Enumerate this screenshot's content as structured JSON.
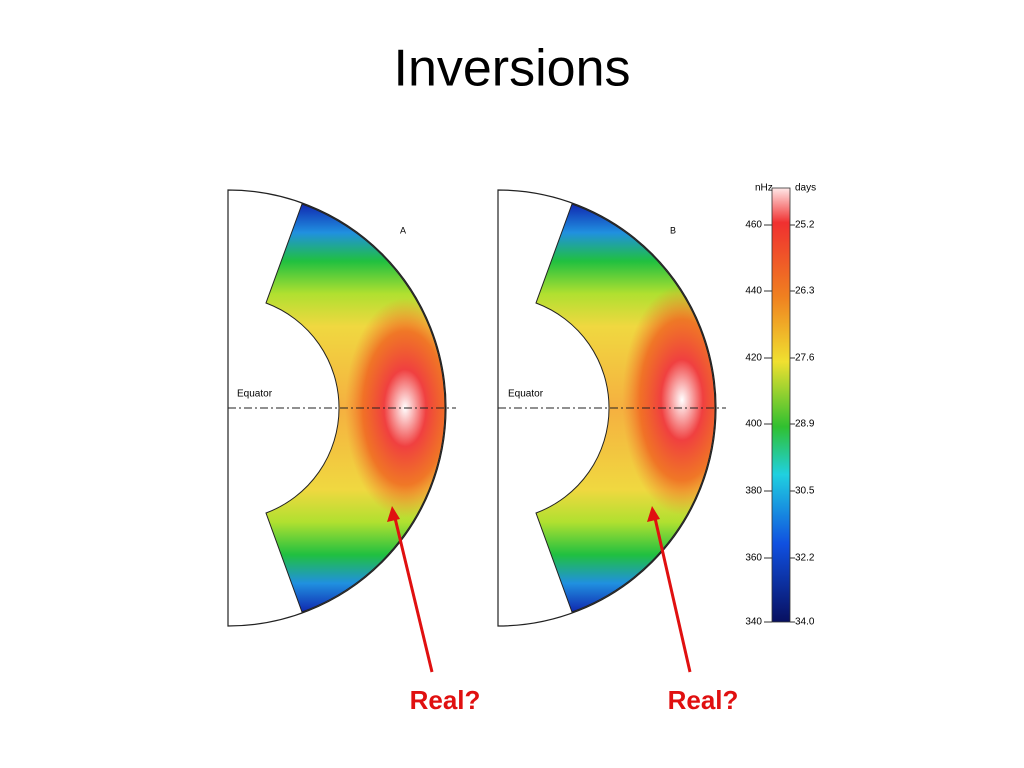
{
  "title": "Inversions",
  "panels": [
    {
      "label": "A",
      "equator": "Equator"
    },
    {
      "label": "B",
      "equator": "Equator"
    }
  ],
  "colorbar": {
    "left_unit": "nHz",
    "right_unit": "days",
    "left_ticks": [
      "460",
      "440",
      "420",
      "400",
      "380",
      "360",
      "340"
    ],
    "right_ticks": [
      "25.2",
      "26.3",
      "27.6",
      "28.9",
      "30.5",
      "32.2",
      "34.0"
    ]
  },
  "annotations": [
    "Real?",
    "Real?"
  ]
}
